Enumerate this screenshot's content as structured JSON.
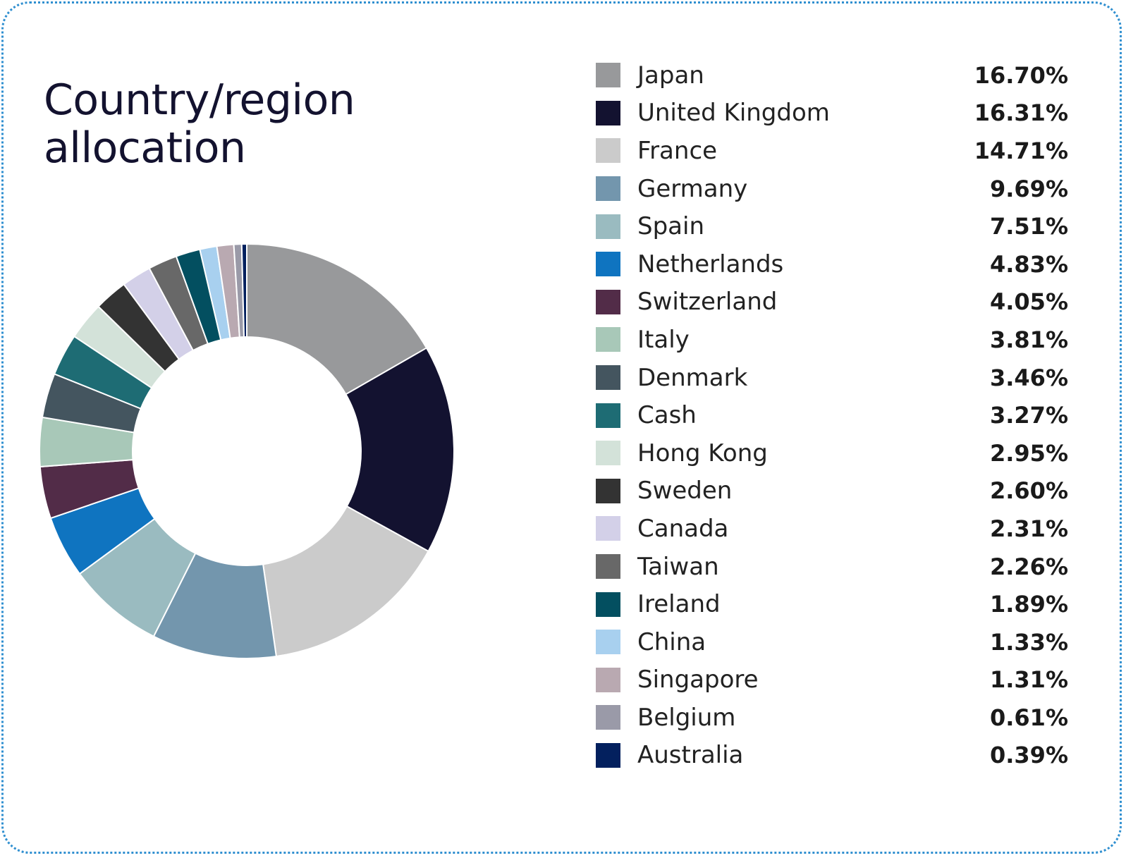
{
  "title_line1": "Country/region",
  "title_line2": "allocation",
  "colors": {
    "border": "#2f8fd0",
    "title": "#13122f"
  },
  "chart_data": {
    "type": "pie",
    "variant": "donut",
    "legend_placement": "right",
    "categories": [
      "Japan",
      "United Kingdom",
      "France",
      "Germany",
      "Spain",
      "Netherlands",
      "Switzerland",
      "Italy",
      "Denmark",
      "Cash",
      "Hong Kong",
      "Sweden",
      "Canada",
      "Taiwan",
      "Ireland",
      "China",
      "Singapore",
      "Belgium",
      "Australia"
    ],
    "values": [
      16.7,
      16.31,
      14.71,
      9.69,
      7.51,
      4.83,
      4.05,
      3.81,
      3.46,
      3.27,
      2.95,
      2.6,
      2.31,
      2.26,
      1.89,
      1.33,
      1.31,
      0.61,
      0.39
    ],
    "value_labels": [
      "16.70%",
      "16.31%",
      "14.71%",
      "9.69%",
      "7.51%",
      "4.83%",
      "4.05%",
      "3.81%",
      "3.46%",
      "3.27%",
      "2.95%",
      "2.60%",
      "2.31%",
      "2.26%",
      "1.89%",
      "1.33%",
      "1.31%",
      "0.61%",
      "0.39%"
    ],
    "colors": [
      "#98999b",
      "#131230",
      "#cbcbcb",
      "#7396ad",
      "#9abbc0",
      "#0f74c0",
      "#522c48",
      "#a8c8b8",
      "#44555f",
      "#1e6c74",
      "#d3e2d9",
      "#333333",
      "#d3d0e8",
      "#686868",
      "#034f60",
      "#a8d0ef",
      "#b9a9b1",
      "#9a9aa8",
      "#03205e"
    ]
  }
}
